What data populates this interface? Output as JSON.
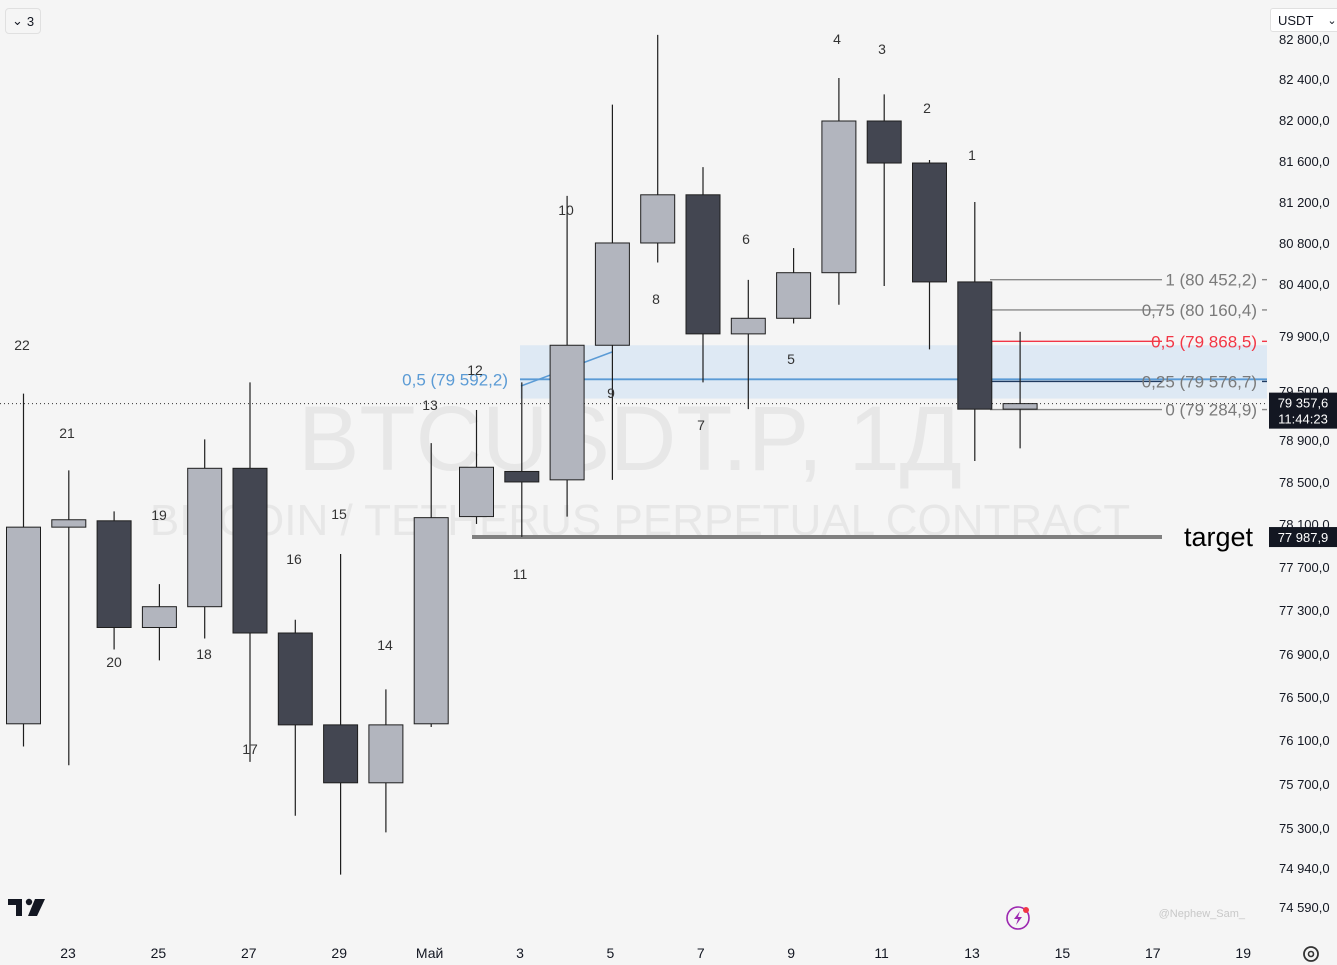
{
  "interval_badge": {
    "value": "3"
  },
  "currency": {
    "label": "USDT"
  },
  "watermark": {
    "symbol": "BTCUSDT.P, 1Д",
    "description": "BITCOIN / TETHERUS PERPETUAL CONTRACT"
  },
  "credit": "@Nephew_Sam_",
  "colors": {
    "bull": "#b2b5be",
    "bear": "#434651",
    "outline": "#1e1e1e",
    "fib_red": "#f23645",
    "fib_blue": "#5b9bd5",
    "fib_zone": "#d6e4f3",
    "target_line": "#808080"
  },
  "chart_data": {
    "type": "candlestick",
    "price_scale": {
      "ticks": [
        "82 800,0",
        "82 400,0",
        "82 000,0",
        "81 600,0",
        "81 200,0",
        "80 800,0",
        "80 400,0",
        "79 900,0",
        "79 500,0",
        "78 900,0",
        "78 500,0",
        "78 100,0",
        "77 700,0",
        "77 300,0",
        "76 900,0",
        "76 500,0",
        "76 100,0",
        "75 700,0",
        "75 300,0",
        "74 940,0",
        "74 590,0"
      ]
    },
    "time_scale": {
      "ticks": [
        "23",
        "25",
        "27",
        "29",
        "Май",
        "3",
        "5",
        "7",
        "9",
        "11",
        "13",
        "15",
        "17",
        "19"
      ]
    },
    "candles": [
      {
        "label": "22",
        "open": 76260,
        "high": 79480,
        "low": 76050,
        "close": 78080
      },
      {
        "label": "21",
        "open": 78080,
        "high": 78620,
        "low": 75880,
        "close": 78150
      },
      {
        "label": "20",
        "open": 78140,
        "high": 78230,
        "low": 76950,
        "close": 77150
      },
      {
        "label": "19",
        "open": 77150,
        "high": 77550,
        "low": 76850,
        "close": 77340
      },
      {
        "label": "18",
        "open": 77340,
        "high": 78920,
        "low": 77050,
        "close": 78640
      },
      {
        "label": "17",
        "open": 78640,
        "high": 79570,
        "low": 75910,
        "close": 77100
      },
      {
        "label": "16",
        "open": 77100,
        "high": 77220,
        "low": 75420,
        "close": 76250
      },
      {
        "label": "15",
        "open": 76250,
        "high": 77830,
        "low": 74890,
        "close": 75720
      },
      {
        "label": "14",
        "open": 75720,
        "high": 76580,
        "low": 75270,
        "close": 76250
      },
      {
        "label": "13",
        "open": 76260,
        "high": 78880,
        "low": 76230,
        "close": 78170
      },
      {
        "label": "12",
        "open": 78180,
        "high": 79280,
        "low": 78110,
        "close": 78650
      },
      {
        "label": "11",
        "open": 78610,
        "high": 79570,
        "low": 77990,
        "close": 78510
      },
      {
        "label": "10",
        "open": 78530,
        "high": 81270,
        "low": 78180,
        "close": 79840
      },
      {
        "label": "9",
        "open": 79840,
        "high": 82160,
        "low": 78530,
        "close": 80810
      },
      {
        "label": "8",
        "open": 80810,
        "high": 82850,
        "low": 80620,
        "close": 81280
      },
      {
        "label": "7",
        "open": 81280,
        "high": 81550,
        "low": 79570,
        "close": 79930
      },
      {
        "label": "6",
        "open": 79930,
        "high": 80450,
        "low": 79290,
        "close": 80080
      },
      {
        "label": "5",
        "open": 80080,
        "high": 80760,
        "low": 80030,
        "close": 80520
      },
      {
        "label": "4",
        "open": 80520,
        "high": 82420,
        "low": 80210,
        "close": 82000
      },
      {
        "label": "3",
        "open": 82000,
        "high": 82260,
        "low": 80390,
        "close": 81590
      },
      {
        "label": "2",
        "open": 81590,
        "high": 81620,
        "low": 79810,
        "close": 80430
      },
      {
        "label": "1",
        "open": 80430,
        "high": 81210,
        "low": 78710,
        "close": 79290
      },
      {
        "label": "",
        "open": 79290,
        "high": 79950,
        "low": 78830,
        "close": 79357.6
      }
    ],
    "fib_levels": [
      {
        "label": "1 (80 452,2)",
        "price": 80452.2,
        "style": "gray"
      },
      {
        "label": "0,75 (80 160,4)",
        "price": 80160.4,
        "style": "gray"
      },
      {
        "label": "0,5 (79 868,5)",
        "price": 79868.5,
        "style": "red"
      },
      {
        "label": "0,25 (79 576,7)",
        "price": 79576.7,
        "style": "navy"
      },
      {
        "label": "0 (79 284,9)",
        "price": 79284.9,
        "style": "gray"
      }
    ],
    "fib_zone": {
      "label": "0,5 (79 592,2)",
      "top": 79840,
      "bottom": 79420,
      "mid": 79592.2
    },
    "target": {
      "label": "target",
      "price": 77987.9,
      "price_label": "77 987,9"
    },
    "current_price": {
      "price": 79357.6,
      "label": "79 357,6",
      "countdown": "11:44:23"
    }
  }
}
